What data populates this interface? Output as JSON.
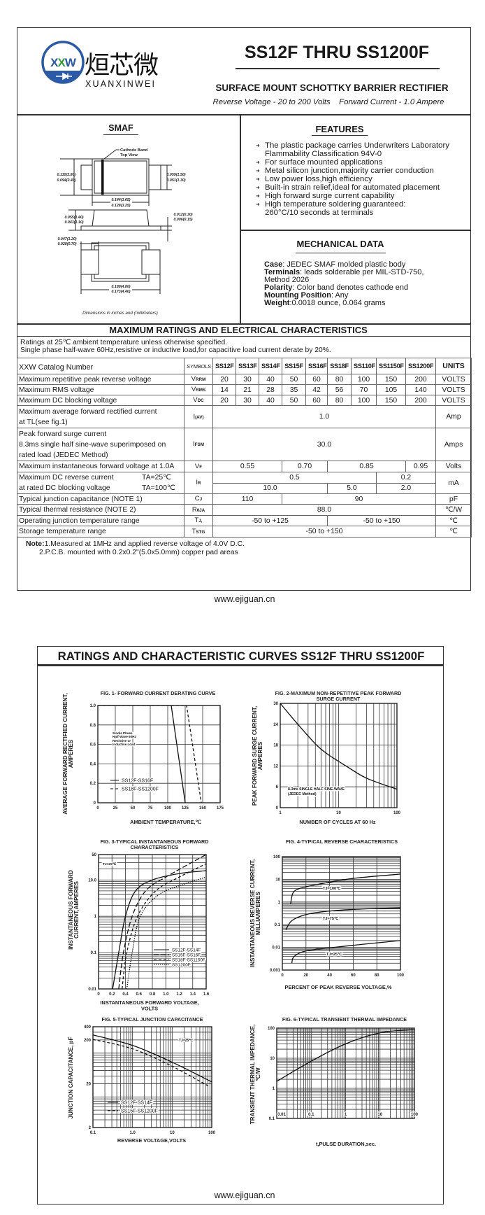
{
  "header": {
    "logo_text": "XXW",
    "logo_cn": "烜芯微",
    "logo_en": "XUANXINWEI",
    "title": "SS12F THRU SS1200F",
    "subtitle": "SURFACE MOUNT SCHOTTKY BARRIER RECTIFIER",
    "spec_line": "Reverse Voltage - 20 to 200 Volts    Forward Current - 1.0 Ampere"
  },
  "colors": {
    "logo_blue": "#2b5aa6",
    "logo_green": "#3a9a3c",
    "text": "#1a1a1a"
  },
  "package": {
    "title": "SMAF",
    "cathode_label": "Cathode Band",
    "top_view": "Top View",
    "dims": {
      "body_h_max": "0.110(2.80)",
      "body_h_min": "0.094(2.40)",
      "lead_w_max": "0.059(1.50)",
      "lead_w_min": "0.051(1.30)",
      "body_l_max": "0.144(3.65)",
      "body_l_min": "0.128(3.25)",
      "height_max": "0.055(1.40)",
      "height_min": "0.043(1.10)",
      "lead_t_max": "0.012(0.30)",
      "lead_t_min": "0.006(0.15)",
      "pad_max": "0.047(1.20)",
      "pad_min": "0.028(0.70)",
      "total_max": "0.189(4.80)",
      "total_min": "0.173(4.40)"
    },
    "caption": "Dimensions in inches and (millimeters)"
  },
  "features": {
    "title": "FEATURES",
    "items": [
      [
        "The plastic package carries Underwriters Laboratory",
        "Flammability Classification 94V-0"
      ],
      [
        "For surface mounted applications"
      ],
      [
        "Metal silicon junction,majority carrier conduction"
      ],
      [
        "Low power loss,high efficiency"
      ],
      [
        "Built-in strain relief,ideal for automated placement"
      ],
      [
        "High forward surge current capability"
      ],
      [
        "High temperature soldering guaranteed:",
        "260°C/10 seconds at terminals"
      ]
    ]
  },
  "mechanical": {
    "title": "MECHANICAL DATA",
    "lines": [
      {
        "label": "Case",
        "text": ": JEDEC SMAF molded plastic body"
      },
      {
        "label": "Terminals",
        "text": ": leads solderable per MIL-STD-750,"
      },
      {
        "label": "",
        "text": "Method 2026"
      },
      {
        "label": "Polarity",
        "text": ": Color band denotes cathode end"
      },
      {
        "label": "Mounting Position",
        "text": ": Any"
      },
      {
        "label": "Weight",
        "text": ":0.0018 ounce, 0.064 grams"
      }
    ]
  },
  "ratings": {
    "title": "MAXIMUM RATINGS AND ELECTRICAL CHARACTERISTICS",
    "conditions": [
      "Ratings at 25℃ ambient temperature unless otherwise specified.",
      "Single phase half-wave 60Hz,resistive or inductive load,for capacitive load current derate by 20%."
    ],
    "header": {
      "param": "XXW Catalog Number",
      "symbols": "SYMBOLS",
      "parts": [
        "SS12F",
        "SS13F",
        "SS14F",
        "SS15F",
        "SS16F",
        "SS18F",
        "SS110F",
        "SS1150F",
        "SS1200F"
      ],
      "units": "UNITS"
    },
    "rows": [
      {
        "param": [
          "Maximum repetitive peak reverse voltage"
        ],
        "sym": "V",
        "sub": "RRM",
        "cells": [
          [
            "20",
            1
          ],
          [
            "30",
            1
          ],
          [
            "40",
            1
          ],
          [
            "50",
            1
          ],
          [
            "60",
            1
          ],
          [
            "80",
            1
          ],
          [
            "100",
            1
          ],
          [
            "150",
            1
          ],
          [
            "200",
            1
          ]
        ],
        "unit": "VOLTS"
      },
      {
        "param": [
          "Maximum RMS voltage"
        ],
        "sym": "V",
        "sub": "RMS",
        "cells": [
          [
            "14",
            1
          ],
          [
            "21",
            1
          ],
          [
            "28",
            1
          ],
          [
            "35",
            1
          ],
          [
            "42",
            1
          ],
          [
            "56",
            1
          ],
          [
            "70",
            1
          ],
          [
            "105",
            1
          ],
          [
            "140",
            1
          ]
        ],
        "unit": "VOLTS"
      },
      {
        "param": [
          "Maximum DC blocking voltage"
        ],
        "sym": "V",
        "sub": "DC",
        "cells": [
          [
            "20",
            1
          ],
          [
            "30",
            1
          ],
          [
            "40",
            1
          ],
          [
            "50",
            1
          ],
          [
            "60",
            1
          ],
          [
            "80",
            1
          ],
          [
            "100",
            1
          ],
          [
            "150",
            1
          ],
          [
            "200",
            1
          ]
        ],
        "unit": "VOLTS"
      },
      {
        "param": [
          "Maximum average forward rectified current",
          "at TL(see fig.1)"
        ],
        "sym": "I",
        "sub": "(AV)",
        "cells": [
          [
            "1.0",
            9
          ]
        ],
        "unit": "Amp"
      },
      {
        "param": [
          "Peak forward surge current",
          "8.3ms single half sine-wave superimposed on",
          "rated load (JEDEC Method)"
        ],
        "sym": "I",
        "sub": "FSM",
        "cells": [
          [
            "30.0",
            9
          ]
        ],
        "unit": "Amps"
      },
      {
        "param": [
          "Maximum instantaneous forward voltage at 1.0A"
        ],
        "sym": "V",
        "sub": "F",
        "cells": [
          [
            "0.55",
            3
          ],
          [
            "0.70",
            2
          ],
          [
            "0.85",
            3
          ],
          [
            "0.95",
            1
          ]
        ],
        "unit": "Volts"
      },
      {
        "param": [
          "Maximum DC reverse current",
          "at rated DC blocking voltage"
        ],
        "cond": [
          "TA=25℃",
          "TA=100℃"
        ],
        "sym": "I",
        "sub": "R",
        "cells_rows": [
          [
            [
              "0.5",
              7
            ],
            [
              "0.2",
              2
            ]
          ],
          [
            [
              "10.0",
              5
            ],
            [
              "5.0",
              2
            ],
            [
              "2.0",
              2
            ]
          ]
        ],
        "unit": "mA"
      },
      {
        "param": [
          "Typical junction capacitance (NOTE 1)"
        ],
        "sym": "C",
        "sub": "J",
        "cells": [
          [
            "110",
            3
          ],
          [
            "90",
            6
          ]
        ],
        "unit": "pF"
      },
      {
        "param": [
          "Typical thermal resistance (NOTE 2)"
        ],
        "sym": "R",
        "sub": "θJA",
        "cells": [
          [
            "88.0",
            9
          ]
        ],
        "unit": "℃/W"
      },
      {
        "param": [
          "Operating junction temperature range"
        ],
        "sym": "T",
        "sub": "J,",
        "cells": [
          [
            "-50 to +125",
            5
          ],
          [
            "-50 to +150",
            4
          ]
        ],
        "unit": "℃"
      },
      {
        "param": [
          "Storage temperature range"
        ],
        "sym": "T",
        "sub": "STG",
        "cells": [
          [
            "-50 to +150",
            9
          ]
        ],
        "unit": "℃"
      }
    ]
  },
  "notes": {
    "label": "Note:",
    "lines": [
      "1.Measured at 1MHz and applied reverse voltage of 4.0V D.C.",
      "2.P.C.B. mounted with 0.2x0.2\"(5.0x5.0mm) copper pad areas"
    ]
  },
  "footer": {
    "site": "www.ejiguan.cn"
  },
  "page2": {
    "title": "RATINGS AND CHARACTERISTIC CURVES SS12F THRU SS1200F",
    "footer": "www.ejiguan.cn"
  },
  "chart_data": [
    {
      "type": "line",
      "title": [
        "FIG. 1- FORWARD CURRENT DERATING CURVE"
      ],
      "xlabel": [
        "AMBIENT TEMPERATURE,℃"
      ],
      "ylabel": [
        "AVERAGE FORWARD RECTIFIED CURRENT,",
        "AMPERES"
      ],
      "xscale": "linear",
      "yscale": "linear",
      "xlim": [
        0,
        175
      ],
      "ylim": [
        0,
        1.0
      ],
      "xticks": [
        "0",
        "25",
        "50",
        "75",
        "100",
        "125",
        "150",
        "175"
      ],
      "yticks": [
        "0",
        "0.2",
        "0.4",
        "0.6",
        "0.8",
        "1.0"
      ],
      "grid": true,
      "legend": "bottom-left",
      "annotations": [
        "Single Phase",
        "Half Wave 60Hz",
        "Resistive or",
        "Inductive Load"
      ],
      "series": [
        {
          "name": "SS12F-SS16F",
          "line": "solid",
          "points": [
            [
              0,
              1.0
            ],
            [
              105,
              1.0
            ],
            [
              125,
              0
            ]
          ]
        },
        {
          "name": "SS18F-SS1200F",
          "line": "dashed",
          "points": [
            [
              0,
              1.0
            ],
            [
              127,
              1.0
            ],
            [
              148,
              0
            ]
          ]
        }
      ]
    },
    {
      "type": "line",
      "title": [
        "FIG. 2-MAXIMUM NON-REPETITIVE PEAK FORWARD",
        "SURGE CURRENT"
      ],
      "xlabel": [
        "NUMBER OF CYCLES AT 60 Hz"
      ],
      "ylabel": [
        "PEAK  FORWARD SURGE CURRENT,",
        "AMPERES"
      ],
      "xscale": "log",
      "yscale": "linear",
      "xlim": [
        1,
        100
      ],
      "ylim": [
        0,
        30
      ],
      "xticks": [
        "1",
        "10",
        "100"
      ],
      "yticks": [
        "0",
        "6",
        "12",
        "18",
        "24",
        "30"
      ],
      "grid": true,
      "annotations": [
        "8.3ms SINGLE HALF SINE-WAVE",
        "(JEDEC Method)"
      ],
      "series": [
        {
          "line": "solid",
          "points": [
            [
              1,
              30
            ],
            [
              2,
              24
            ],
            [
              4.2,
              18
            ],
            [
              7,
              15
            ],
            [
              13.4,
              12
            ],
            [
              30,
              8.5
            ],
            [
              100,
              5.3
            ]
          ]
        }
      ]
    },
    {
      "type": "line",
      "title": [
        "FIG. 3-TYPICAL INSTANTANEOUS FORWARD",
        "CHARACTERISTICS"
      ],
      "xlabel": [
        "INSTANTANEOUS FORWARD VOLTAGE,",
        "VOLTS"
      ],
      "ylabel": [
        "INSTANTANEOUS FORWARD",
        "CURRENT,AMPERES"
      ],
      "xscale": "linear",
      "yscale": "log",
      "xlim": [
        0,
        1.6
      ],
      "ylim": [
        0.01,
        50
      ],
      "xticks": [
        "0",
        "0.2",
        "0.4",
        "0.6",
        "0.8",
        "1.0",
        "1.2",
        "1.4",
        "1.6"
      ],
      "yticks": [
        "0.01",
        "0.1",
        "1",
        "10.0",
        "50"
      ],
      "grid": true,
      "legend": "bottom-right",
      "annotations": [
        "TJ=25℃"
      ],
      "series": [
        {
          "name": "SS12F-SS14F",
          "line": "solid",
          "points": [
            [
              0.21,
              0.01
            ],
            [
              0.3,
              0.1
            ],
            [
              0.4,
              1
            ],
            [
              0.55,
              5
            ],
            [
              0.8,
              10
            ],
            [
              1.2,
              15
            ],
            [
              1.6,
              18
            ]
          ]
        },
        {
          "name": "SS15F-SS16F",
          "line": "long-dash",
          "points": [
            [
              0.3,
              0.01
            ],
            [
              0.37,
              0.1
            ],
            [
              0.5,
              1
            ],
            [
              0.7,
              5
            ],
            [
              1.0,
              12
            ],
            [
              1.6,
              50
            ]
          ]
        },
        {
          "name": "SS18F-SS1150F",
          "line": "dashed",
          "points": [
            [
              0.35,
              0.01
            ],
            [
              0.42,
              0.1
            ],
            [
              0.58,
              1
            ],
            [
              0.85,
              5
            ],
            [
              1.2,
              12
            ],
            [
              1.6,
              28
            ]
          ]
        },
        {
          "name": "SS1200F",
          "line": "dotted",
          "points": [
            [
              0.42,
              0.01
            ],
            [
              0.5,
              0.1
            ],
            [
              0.62,
              1
            ],
            [
              0.9,
              4
            ],
            [
              1.3,
              8
            ],
            [
              1.6,
              12
            ]
          ]
        }
      ]
    },
    {
      "type": "line",
      "title": [
        "FIG. 4-TYPICAL REVERSE CHARACTERISTICS"
      ],
      "xlabel": [
        "PERCENT OF PEAK REVERSE VOLTAGE,%"
      ],
      "ylabel": [
        "INSTANTANEOUS REVERSE CURRENT,",
        "MILLIAMPERES"
      ],
      "xscale": "linear",
      "yscale": "log",
      "xlim": [
        0,
        100
      ],
      "ylim": [
        0.001,
        100
      ],
      "xticks": [
        "0",
        "20",
        "40",
        "60",
        "80",
        "100"
      ],
      "yticks": [
        "0.001",
        "0.01",
        "0.1",
        "1",
        "10",
        "100"
      ],
      "grid": true,
      "series": [
        {
          "name": "TJ=100℃",
          "line": "solid",
          "points": [
            [
              7,
              0.8
            ],
            [
              9,
              2.5
            ],
            [
              15,
              4
            ],
            [
              30,
              6
            ],
            [
              60,
              11
            ],
            [
              100,
              17
            ]
          ]
        },
        {
          "name": "TJ=75℃",
          "line": "solid",
          "points": [
            [
              3,
              0.06
            ],
            [
              8,
              0.15
            ],
            [
              20,
              0.28
            ],
            [
              40,
              0.4
            ],
            [
              70,
              0.5
            ],
            [
              100,
              0.55
            ]
          ]
        },
        {
          "name": "TJ=25℃",
          "line": "solid",
          "points": [
            [
              8,
              0.002
            ],
            [
              10,
              0.004
            ],
            [
              20,
              0.007
            ],
            [
              40,
              0.0095
            ],
            [
              70,
              0.014
            ],
            [
              100,
              0.02
            ]
          ]
        }
      ]
    },
    {
      "type": "line",
      "title": [
        "FIG. 5-TYPICAL JUNCTION CAPACITANCE"
      ],
      "xlabel": [
        "REVERSE VOLTAGE,VOLTS"
      ],
      "ylabel": [
        "JUNCTION CAPACITANCE, pF"
      ],
      "xscale": "log",
      "yscale": "log",
      "xlim": [
        0.1,
        100
      ],
      "ylim": [
        2,
        400
      ],
      "xticks": [
        "0.1",
        "1.0",
        "10",
        "100"
      ],
      "yticks": [
        "2",
        "20",
        "200",
        "400"
      ],
      "grid": true,
      "legend": "bottom-left",
      "annotations": [
        "TJ=25℃"
      ],
      "series": [
        {
          "name": "SS12F-SS14F",
          "line": "solid",
          "points": [
            [
              0.1,
              260
            ],
            [
              1,
              150
            ],
            [
              10,
              62
            ],
            [
              100,
              22
            ]
          ]
        },
        {
          "name": "SS15F-SS1200F",
          "line": "dashed",
          "points": [
            [
              0.1,
              205
            ],
            [
              1,
              125
            ],
            [
              10,
              50
            ],
            [
              80,
              18
            ]
          ]
        }
      ]
    },
    {
      "type": "line",
      "title": [
        "FIG. 6-TYPICAL TRANSIENT THERMAL IMPEDANCE"
      ],
      "xlabel": [
        "t,PULSE DURATION,sec."
      ],
      "ylabel": [
        "TRANSIENT THERMAL IMPEDANCE,",
        "℃/W"
      ],
      "xscale": "log",
      "yscale": "log",
      "xlim": [
        0.01,
        100
      ],
      "ylim": [
        0.1,
        100
      ],
      "xticks": [
        "0.01",
        "0.1",
        "1",
        "10",
        "100"
      ],
      "yticks": [
        "0.1",
        "1",
        "10",
        "100"
      ],
      "grid": true,
      "series": [
        {
          "line": "solid",
          "points": [
            [
              0.01,
              1.7
            ],
            [
              0.1,
              8
            ],
            [
              1,
              30
            ],
            [
              10,
              70
            ],
            [
              100,
              90
            ]
          ]
        }
      ]
    }
  ]
}
